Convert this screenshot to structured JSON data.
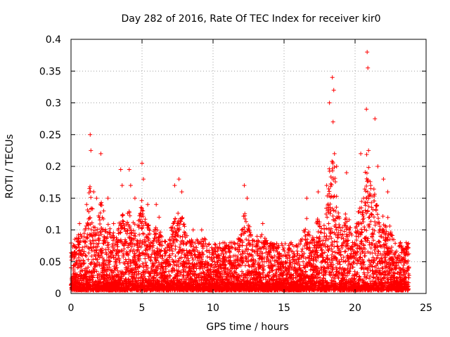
{
  "chart_data": {
    "type": "scatter",
    "title": "Day 282 of 2016, Rate Of TEC Index for receiver kir0",
    "xlabel": "GPS time / hours",
    "ylabel": "ROTI / TECUs",
    "xlim": [
      0,
      25
    ],
    "ylim": [
      0,
      0.4
    ],
    "xticks": [
      0,
      5,
      10,
      15,
      20,
      25
    ],
    "xtick_labels": [
      "0",
      "5",
      "10",
      "15",
      "20",
      "25"
    ],
    "yticks": [
      0,
      0.05,
      0.1,
      0.15,
      0.2,
      0.25,
      0.3,
      0.35,
      0.4
    ],
    "ytick_labels": [
      "0",
      "0.05",
      "0.1",
      "0.15",
      "0.2",
      "0.25",
      "0.3",
      "0.35",
      "0.4"
    ],
    "grid": true,
    "marker": "+",
    "marker_color": "#ff0000",
    "series": [
      {
        "name": "ROTI",
        "note": "dense cloud of + markers mostly between 0.005 and 0.08 TECU across 0-23.8 h; representative peaks listed",
        "x": [
          0.3,
          0.6,
          1.0,
          1.1,
          1.3,
          1.35,
          1.4,
          1.6,
          1.8,
          2.1,
          2.3,
          2.6,
          3.0,
          3.5,
          3.6,
          4.1,
          4.2,
          4.5,
          5.0,
          5.1,
          5.4,
          6.0,
          6.2,
          7.3,
          7.6,
          7.8,
          8.6,
          9.2,
          10.0,
          10.7,
          11.3,
          12.2,
          12.4,
          13.1,
          13.5,
          14.2,
          15.5,
          16.6,
          17.4,
          18.0,
          18.2,
          18.4,
          18.45,
          18.5,
          18.55,
          18.7,
          19.4,
          20.4,
          20.6,
          20.8,
          20.85,
          20.9,
          20.95,
          21.1,
          21.4,
          21.6,
          22.0,
          22.3,
          23.2,
          23.6
        ],
        "y": [
          0.06,
          0.11,
          0.1,
          0.14,
          0.165,
          0.25,
          0.225,
          0.16,
          0.15,
          0.22,
          0.13,
          0.15,
          0.11,
          0.195,
          0.17,
          0.195,
          0.17,
          0.15,
          0.205,
          0.18,
          0.14,
          0.14,
          0.12,
          0.17,
          0.18,
          0.16,
          0.1,
          0.1,
          0.07,
          0.08,
          0.08,
          0.17,
          0.15,
          0.09,
          0.11,
          0.07,
          0.08,
          0.15,
          0.16,
          0.17,
          0.3,
          0.34,
          0.27,
          0.32,
          0.22,
          0.2,
          0.19,
          0.22,
          0.15,
          0.29,
          0.38,
          0.355,
          0.225,
          0.17,
          0.275,
          0.2,
          0.18,
          0.16,
          0.08,
          0.08
        ]
      }
    ],
    "baseline_band": {
      "x_start": 0.0,
      "x_end": 23.8,
      "y_low": 0.005,
      "y_high_typical": 0.08
    }
  }
}
